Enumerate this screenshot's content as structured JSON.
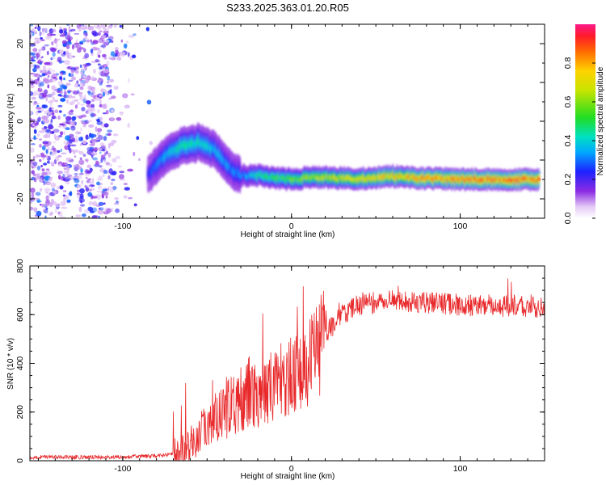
{
  "title": "S233.2025.363.01.20.R05",
  "chart_data": [
    {
      "type": "heatmap",
      "xlabel": "Height of straight line (km)",
      "ylabel": "Frequency (Hz)",
      "xlim": [
        -155,
        150
      ],
      "ylim": [
        -25,
        25
      ],
      "xticks": [
        -100,
        0,
        100
      ],
      "xtick_labels": [
        "-100",
        "0",
        "100"
      ],
      "yticks": [
        -20,
        -10,
        0,
        10,
        20
      ],
      "ytick_labels": [
        "-20",
        "-10",
        "0",
        "10",
        "20"
      ],
      "ridge": {
        "description": "spectral line frequency vs height",
        "x": [
          -85,
          -80,
          -75,
          -70,
          -65,
          -60,
          -55,
          -50,
          -45,
          -40,
          -35,
          -30,
          -20,
          -10,
          0,
          10,
          20,
          40,
          60,
          80,
          100,
          120,
          147
        ],
        "y": [
          -13.5,
          -11.5,
          -9,
          -7.5,
          -6.5,
          -6,
          -5.5,
          -6.5,
          -7.5,
          -10,
          -12.5,
          -14,
          -14,
          -14.5,
          -15,
          -14.5,
          -14.5,
          -14.8,
          -14.2,
          -14.7,
          -14.9,
          -15,
          -15
        ],
        "amplitude": [
          0.25,
          0.3,
          0.35,
          0.42,
          0.45,
          0.42,
          0.45,
          0.4,
          0.38,
          0.35,
          0.32,
          0.3,
          0.45,
          0.5,
          0.55,
          0.6,
          0.65,
          0.7,
          0.75,
          0.8,
          0.82,
          0.85,
          0.85
        ]
      },
      "noise_region": {
        "x_range": [
          -155,
          -75
        ],
        "amplitude_max": 0.25
      },
      "colorbar": {
        "label": "Normalized spectral amplitude",
        "range": [
          0.0,
          1.0
        ],
        "ticks": [
          0.0,
          0.2,
          0.4,
          0.6,
          0.8
        ],
        "tick_labels": [
          "0.0",
          "0.2",
          "0.4",
          "0.6",
          "0.8"
        ]
      }
    },
    {
      "type": "line",
      "xlabel": "Height of straight line (km)",
      "ylabel": "SNR (10 * v/v)",
      "xlim": [
        -155,
        150
      ],
      "ylim": [
        0,
        800
      ],
      "xticks": [
        -100,
        0,
        100
      ],
      "xtick_labels": [
        "-100",
        "0",
        "100"
      ],
      "yticks": [
        0,
        200,
        400,
        600,
        800
      ],
      "ytick_labels": [
        "0",
        "200",
        "400",
        "600",
        "800"
      ],
      "color": "#e8282a",
      "envelope": {
        "x": [
          -155,
          -100,
          -80,
          -70,
          -65,
          -60,
          -55,
          -50,
          -45,
          -40,
          -35,
          -30,
          -25,
          -20,
          -15,
          -10,
          -5,
          0,
          5,
          10,
          15,
          20,
          25,
          30,
          40,
          50,
          60,
          80,
          100,
          120,
          150
        ],
        "y": [
          15,
          15,
          20,
          28,
          40,
          70,
          110,
          150,
          180,
          220,
          250,
          260,
          300,
          300,
          310,
          330,
          350,
          360,
          400,
          430,
          470,
          520,
          560,
          600,
          640,
          650,
          660,
          650,
          640,
          635,
          630
        ]
      }
    }
  ]
}
